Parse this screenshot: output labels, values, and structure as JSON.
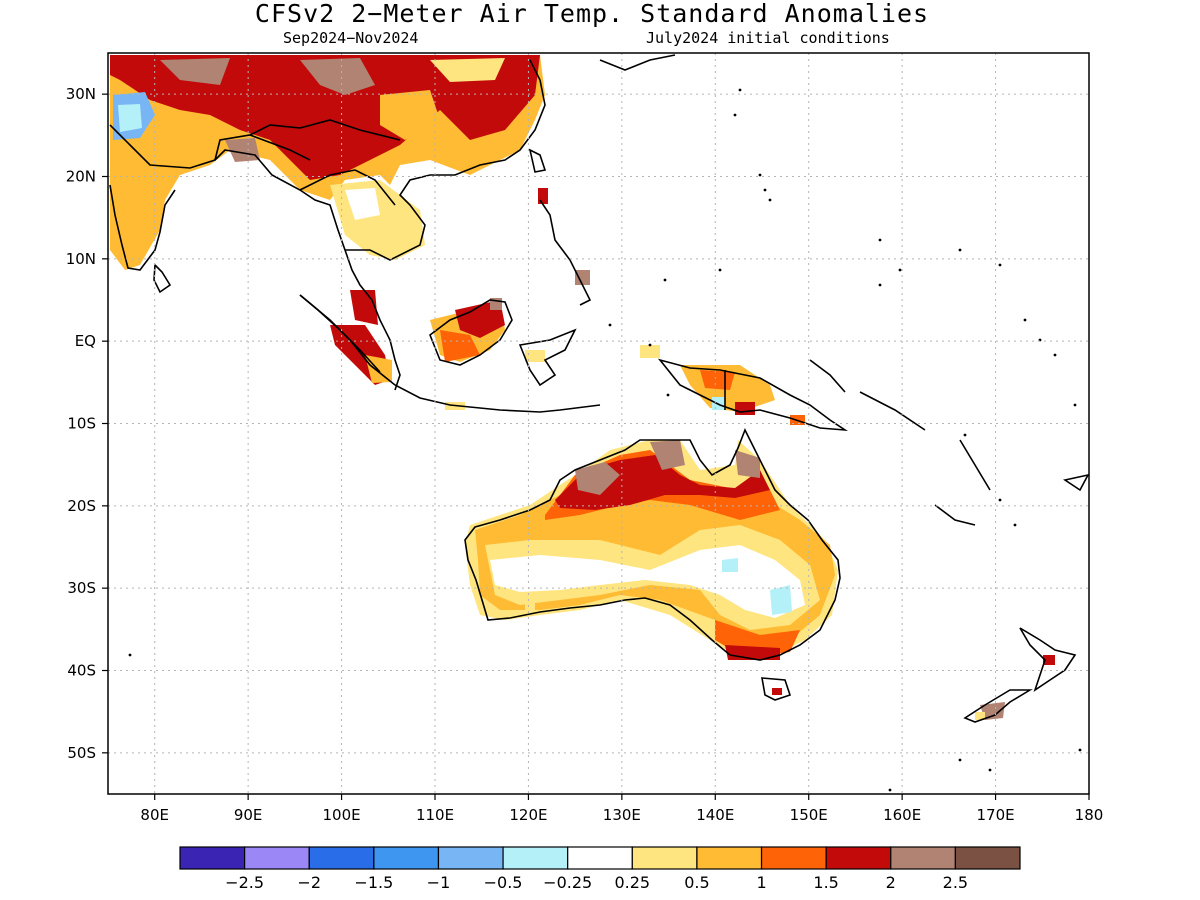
{
  "title": "CFSv2 2−Meter Air Temp. Standard Anomalies",
  "subtitle_left": "Sep2024−Nov2024",
  "subtitle_right": "July2024 initial conditions",
  "map": {
    "lon_range": [
      75,
      180
    ],
    "lat_range": [
      -55,
      35
    ],
    "lon_labels": [
      "80E",
      "90E",
      "100E",
      "110E",
      "120E",
      "130E",
      "140E",
      "150E",
      "160E",
      "170E",
      "180"
    ],
    "lat_labels": [
      "30N",
      "20N",
      "10N",
      "EQ",
      "10S",
      "20S",
      "30S",
      "40S",
      "50S"
    ],
    "grid": "dotted"
  },
  "colorbar": {
    "colors": [
      "#3a24b4",
      "#9b87f5",
      "#2a6de8",
      "#3f96f0",
      "#77b5f5",
      "#b3f0f8",
      "#ffffff",
      "#ffe580",
      "#ffbb33",
      "#ff6308",
      "#c30a0a",
      "#b08373",
      "#7a5143"
    ],
    "labels": [
      "−2.5",
      "−2",
      "−1.5",
      "−1",
      "−0.5",
      "−0.25",
      "0.25",
      "0.5",
      "1",
      "1.5",
      "2",
      "2.5"
    ]
  }
}
